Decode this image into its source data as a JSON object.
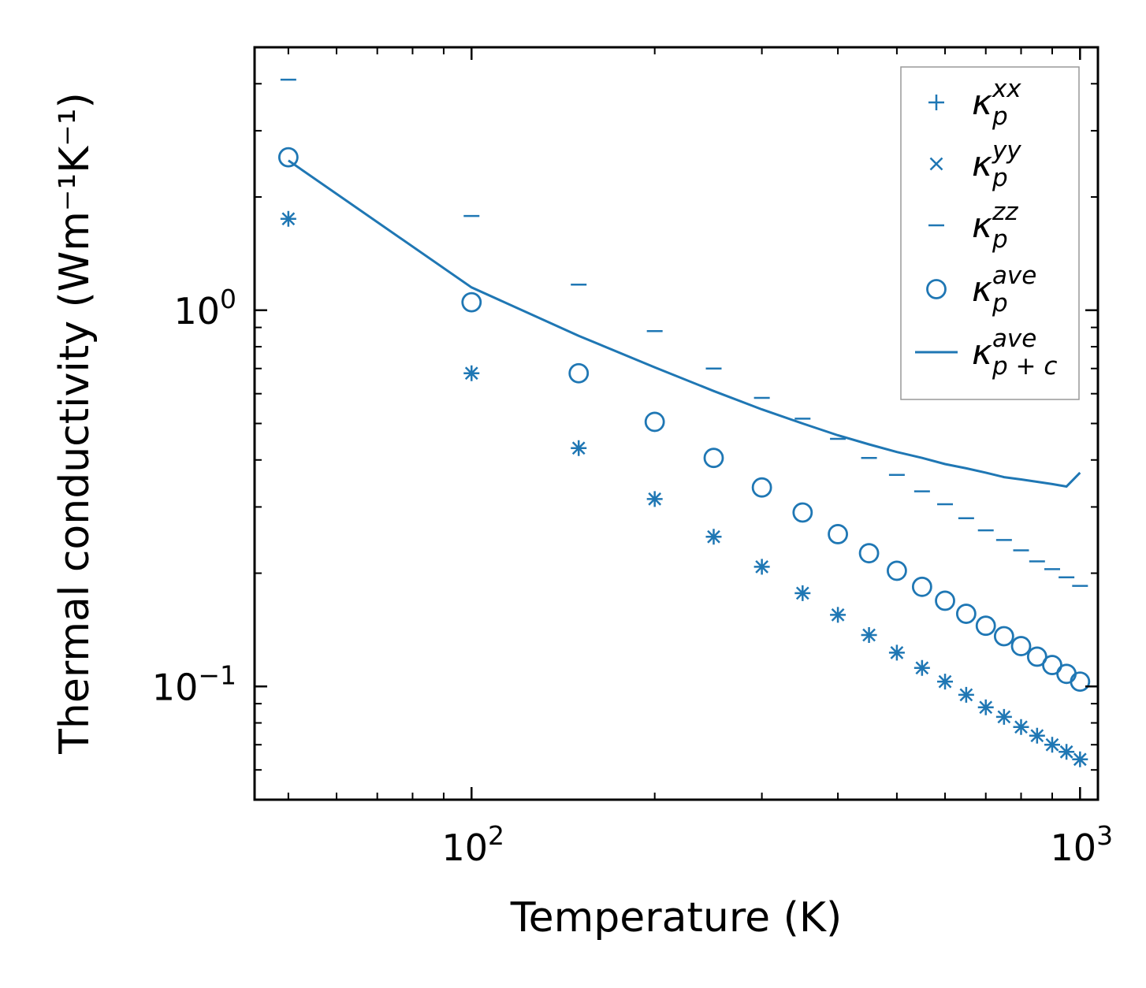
{
  "chart_data": {
    "type": "scatter",
    "title": "",
    "xlabel": "Temperature (K)",
    "ylabel": "Thermal conductivity (Wm⁻¹K⁻¹)",
    "xscale": "log",
    "yscale": "log",
    "xlim": [
      44,
      1070
    ],
    "ylim": [
      0.05,
      5.0
    ],
    "x_ticks": [
      {
        "base": "10",
        "exp": "2",
        "value": 100
      },
      {
        "base": "10",
        "exp": "3",
        "value": 1000
      }
    ],
    "y_ticks": [
      {
        "base": "10",
        "exp": "−1",
        "value": 0.1
      },
      {
        "base": "10",
        "exp": "0",
        "value": 1
      }
    ],
    "color": "#1f77b4",
    "legend_position": "top-right",
    "x": [
      50,
      100,
      150,
      200,
      250,
      300,
      350,
      400,
      450,
      500,
      550,
      600,
      650,
      700,
      750,
      800,
      850,
      900,
      950,
      1000
    ],
    "series": [
      {
        "name": "κ_p^xx",
        "base": "κ",
        "sub": "p",
        "sup": "xx",
        "marker": "plus",
        "values": [
          1.75,
          0.68,
          0.43,
          0.315,
          0.25,
          0.208,
          0.177,
          0.155,
          0.137,
          0.123,
          0.112,
          0.103,
          0.095,
          0.088,
          0.083,
          0.078,
          0.074,
          0.07,
          0.067,
          0.064
        ]
      },
      {
        "name": "κ_p^yy",
        "base": "κ",
        "sub": "p",
        "sup": "yy",
        "marker": "x",
        "values": [
          1.75,
          0.68,
          0.43,
          0.315,
          0.25,
          0.208,
          0.177,
          0.155,
          0.137,
          0.123,
          0.112,
          0.103,
          0.095,
          0.088,
          0.083,
          0.078,
          0.074,
          0.07,
          0.067,
          0.064
        ]
      },
      {
        "name": "κ_p^zz",
        "base": "κ",
        "sub": "p",
        "sup": "zz",
        "marker": "hline",
        "values": [
          4.1,
          1.78,
          1.17,
          0.88,
          0.7,
          0.585,
          0.515,
          0.455,
          0.405,
          0.365,
          0.33,
          0.305,
          0.28,
          0.26,
          0.245,
          0.23,
          0.215,
          0.205,
          0.195,
          0.185
        ]
      },
      {
        "name": "κ_p^ave",
        "base": "κ",
        "sub": "p",
        "sup": "ave",
        "marker": "circle",
        "values": [
          2.55,
          1.05,
          0.68,
          0.505,
          0.405,
          0.338,
          0.29,
          0.254,
          0.226,
          0.203,
          0.184,
          0.169,
          0.156,
          0.145,
          0.136,
          0.128,
          0.12,
          0.114,
          0.108,
          0.103
        ]
      },
      {
        "name": "κ_p+c^ave",
        "base": "κ",
        "sub": "p + c",
        "sup": "ave",
        "marker": "line",
        "values": [
          2.5,
          1.15,
          0.855,
          0.705,
          0.61,
          0.545,
          0.5,
          0.465,
          0.44,
          0.42,
          0.405,
          0.39,
          0.38,
          0.37,
          0.36,
          0.355,
          0.35,
          0.345,
          0.34,
          0.37
        ]
      }
    ]
  }
}
